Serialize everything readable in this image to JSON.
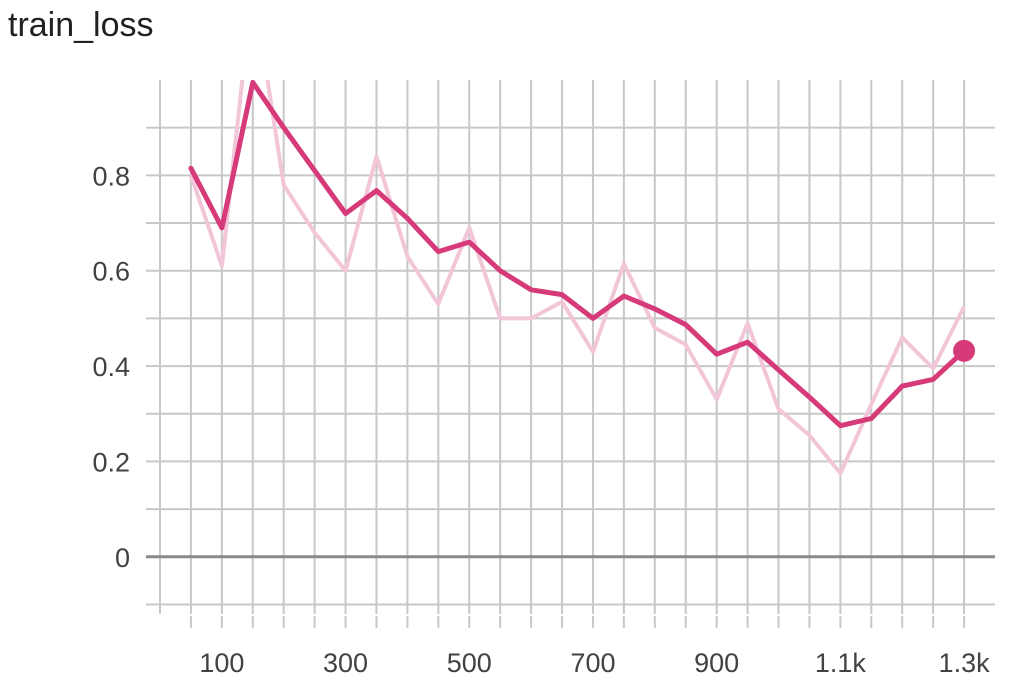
{
  "chart_data": {
    "type": "line",
    "title": "train_loss",
    "xlabel": "",
    "ylabel": "",
    "xlim": [
      0,
      1350
    ],
    "ylim": [
      -0.12,
      1.0
    ],
    "x_ticks": [
      100,
      300,
      500,
      700,
      900,
      1100,
      1300
    ],
    "x_tick_labels": [
      "100",
      "300",
      "500",
      "700",
      "900",
      "1.1k",
      "1.3k"
    ],
    "y_ticks": [
      0,
      0.2,
      0.4,
      0.6,
      0.8
    ],
    "y_tick_labels": [
      "0",
      "0.2",
      "0.4",
      "0.6",
      "0.8"
    ],
    "grid": true,
    "series": [
      {
        "role": "raw",
        "color": "#f2c6d8",
        "x": [
          50,
          100,
          150,
          200,
          250,
          300,
          350,
          400,
          450,
          500,
          550,
          600,
          650,
          700,
          750,
          800,
          850,
          900,
          950,
          1000,
          1050,
          1100,
          1150,
          1200,
          1250,
          1300
        ],
        "y": [
          0.8,
          0.61,
          1.2,
          0.78,
          0.68,
          0.6,
          0.84,
          0.63,
          0.53,
          0.69,
          0.5,
          0.5,
          0.535,
          0.43,
          0.615,
          0.48,
          0.445,
          0.33,
          0.49,
          0.31,
          0.255,
          0.175,
          0.32,
          0.46,
          0.395,
          0.525
        ]
      },
      {
        "role": "smoothed",
        "color": "#d63a79",
        "x": [
          50,
          100,
          150,
          200,
          250,
          300,
          350,
          400,
          450,
          500,
          550,
          600,
          650,
          700,
          750,
          800,
          850,
          900,
          950,
          1000,
          1050,
          1100,
          1150,
          1200,
          1250,
          1300
        ],
        "y": [
          0.815,
          0.69,
          0.995,
          0.9,
          0.81,
          0.72,
          0.768,
          0.71,
          0.64,
          0.66,
          0.6,
          0.56,
          0.55,
          0.5,
          0.547,
          0.52,
          0.487,
          0.425,
          0.45,
          0.392,
          0.335,
          0.275,
          0.29,
          0.358,
          0.372,
          0.432
        ]
      }
    ],
    "colors": {
      "smoothed_line": "#d63a79",
      "raw_line": "#f2c6d8",
      "grid": "#c8c8c8",
      "zero_line": "#8a8a8a",
      "tick_label": "#424242"
    }
  }
}
